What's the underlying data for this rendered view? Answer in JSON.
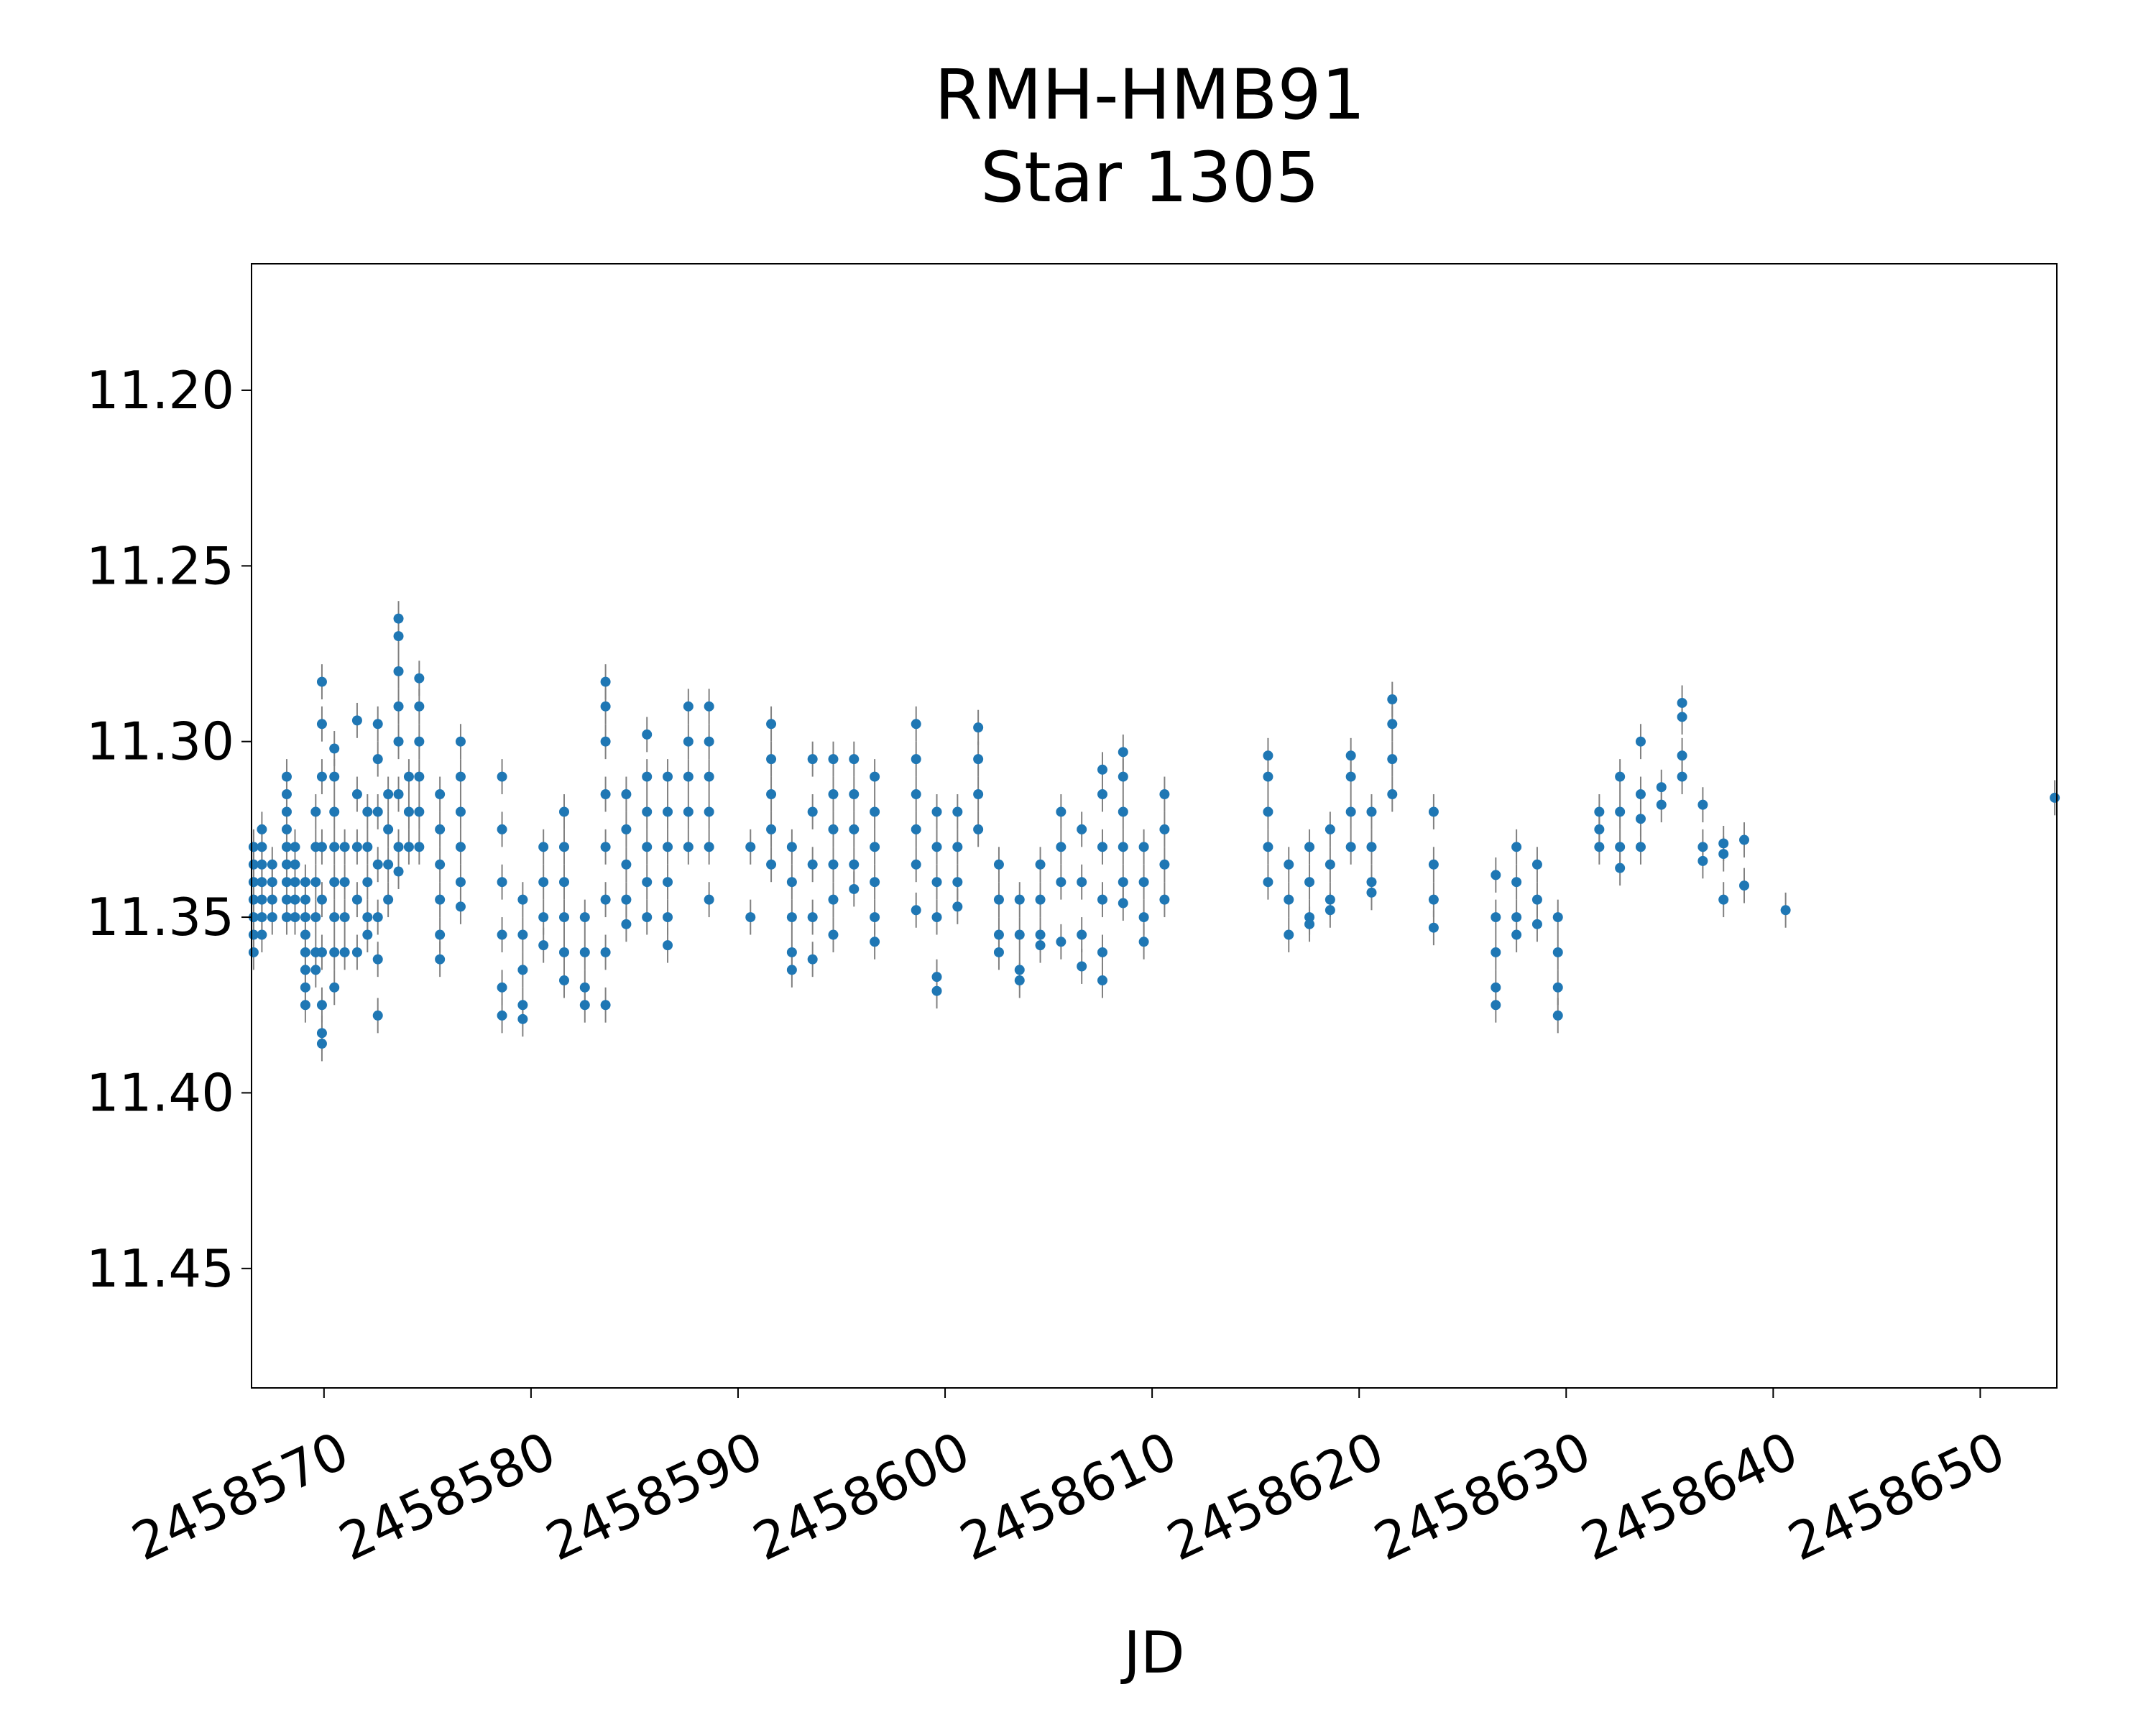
{
  "chart_data": {
    "type": "scatter",
    "title": [
      "RMH-HMB91",
      "Star 1305"
    ],
    "xlabel": "JD",
    "ylabel": "",
    "xlim": [
      2458566.5,
      2458653.7
    ],
    "ylim": [
      11.484,
      11.164
    ],
    "y_inverted": true,
    "grid": false,
    "x_ticks": [
      2458570,
      2458580,
      2458590,
      2458600,
      2458610,
      2458620,
      2458630,
      2458640,
      2458650
    ],
    "x_tick_labels": [
      "2458570",
      "2458580",
      "2458590",
      "2458600",
      "2458610",
      "2458620",
      "2458630",
      "2458640",
      "2458650"
    ],
    "y_ticks": [
      11.2,
      11.25,
      11.3,
      11.35,
      11.4,
      11.45
    ],
    "y_tick_labels": [
      "11.20",
      "11.25",
      "11.30",
      "11.35",
      "11.40",
      "11.45"
    ],
    "marker_color": "#1f77b4",
    "errorbar_color": "#808080",
    "typical_error": 0.005,
    "series": [
      {
        "segments": [
          {
            "x": 2458566.6,
            "y": [
              11.33,
              11.335,
              11.34,
              11.345,
              11.35,
              11.355,
              11.36
            ]
          },
          {
            "x": 2458567.0,
            "y": [
              11.325,
              11.33,
              11.335,
              11.34,
              11.345,
              11.35,
              11.355
            ]
          },
          {
            "x": 2458567.5,
            "y": [
              11.335,
              11.34,
              11.345,
              11.35
            ]
          },
          {
            "x": 2458568.2,
            "y": [
              11.31,
              11.315,
              11.32,
              11.325,
              11.33,
              11.335,
              11.34,
              11.345,
              11.35
            ]
          },
          {
            "x": 2458568.6,
            "y": [
              11.33,
              11.335,
              11.34,
              11.345,
              11.35
            ]
          },
          {
            "x": 2458569.1,
            "y": [
              11.34,
              11.345,
              11.35,
              11.355,
              11.36,
              11.365,
              11.37,
              11.375
            ]
          },
          {
            "x": 2458569.6,
            "y": [
              11.32,
              11.33,
              11.34,
              11.35,
              11.36,
              11.365
            ]
          },
          {
            "x": 2458569.9,
            "y": [
              11.283,
              11.295,
              11.31,
              11.33,
              11.345,
              11.36,
              11.375,
              11.383,
              11.386
            ]
          },
          {
            "x": 2458570.5,
            "y": [
              11.302,
              11.31,
              11.32,
              11.33,
              11.34,
              11.35,
              11.36,
              11.37
            ]
          },
          {
            "x": 2458571.0,
            "y": [
              11.33,
              11.34,
              11.35,
              11.36
            ]
          },
          {
            "x": 2458571.6,
            "y": [
              11.294,
              11.315,
              11.33,
              11.345,
              11.36
            ]
          },
          {
            "x": 2458572.1,
            "y": [
              11.32,
              11.33,
              11.34,
              11.35,
              11.355
            ]
          },
          {
            "x": 2458572.6,
            "y": [
              11.295,
              11.305,
              11.32,
              11.335,
              11.35,
              11.362,
              11.378
            ]
          },
          {
            "x": 2458573.1,
            "y": [
              11.315,
              11.325,
              11.335,
              11.345
            ]
          },
          {
            "x": 2458573.6,
            "y": [
              11.265,
              11.27,
              11.28,
              11.29,
              11.3,
              11.315,
              11.33,
              11.337
            ]
          },
          {
            "x": 2458574.1,
            "y": [
              11.31,
              11.32,
              11.33
            ]
          },
          {
            "x": 2458574.6,
            "y": [
              11.282,
              11.29,
              11.3,
              11.31,
              11.32,
              11.33
            ]
          },
          {
            "x": 2458575.6,
            "y": [
              11.315,
              11.325,
              11.335,
              11.345,
              11.355,
              11.362
            ]
          },
          {
            "x": 2458576.6,
            "y": [
              11.3,
              11.31,
              11.32,
              11.33,
              11.34,
              11.347
            ]
          },
          {
            "x": 2458578.6,
            "y": [
              11.31,
              11.325,
              11.34,
              11.355,
              11.37,
              11.378
            ]
          },
          {
            "x": 2458579.6,
            "y": [
              11.345,
              11.355,
              11.365,
              11.375,
              11.379
            ]
          },
          {
            "x": 2458580.6,
            "y": [
              11.33,
              11.34,
              11.35,
              11.358
            ]
          },
          {
            "x": 2458581.6,
            "y": [
              11.32,
              11.33,
              11.34,
              11.35,
              11.36,
              11.368
            ]
          },
          {
            "x": 2458582.6,
            "y": [
              11.35,
              11.36,
              11.37,
              11.375
            ]
          },
          {
            "x": 2458583.6,
            "y": [
              11.283,
              11.29,
              11.3,
              11.315,
              11.33,
              11.345,
              11.36,
              11.375
            ]
          },
          {
            "x": 2458584.6,
            "y": [
              11.315,
              11.325,
              11.335,
              11.345,
              11.352
            ]
          },
          {
            "x": 2458585.6,
            "y": [
              11.298,
              11.31,
              11.32,
              11.33,
              11.34,
              11.35
            ]
          },
          {
            "x": 2458586.6,
            "y": [
              11.31,
              11.32,
              11.33,
              11.34,
              11.35,
              11.358
            ]
          },
          {
            "x": 2458587.6,
            "y": [
              11.29,
              11.3,
              11.31,
              11.32,
              11.33
            ]
          },
          {
            "x": 2458588.6,
            "y": [
              11.29,
              11.3,
              11.31,
              11.32,
              11.33,
              11.345
            ]
          },
          {
            "x": 2458590.6,
            "y": [
              11.33,
              11.35
            ]
          },
          {
            "x": 2458591.6,
            "y": [
              11.295,
              11.305,
              11.315,
              11.325,
              11.335
            ]
          },
          {
            "x": 2458592.6,
            "y": [
              11.33,
              11.34,
              11.35,
              11.36,
              11.365
            ]
          },
          {
            "x": 2458593.6,
            "y": [
              11.305,
              11.32,
              11.335,
              11.35,
              11.362
            ]
          },
          {
            "x": 2458594.6,
            "y": [
              11.305,
              11.315,
              11.325,
              11.335,
              11.345,
              11.355
            ]
          },
          {
            "x": 2458595.6,
            "y": [
              11.305,
              11.315,
              11.325,
              11.335,
              11.342
            ]
          },
          {
            "x": 2458596.6,
            "y": [
              11.31,
              11.32,
              11.33,
              11.34,
              11.35,
              11.357
            ]
          },
          {
            "x": 2458598.6,
            "y": [
              11.295,
              11.305,
              11.315,
              11.325,
              11.335,
              11.348
            ]
          },
          {
            "x": 2458599.6,
            "y": [
              11.32,
              11.33,
              11.34,
              11.35,
              11.367,
              11.371
            ]
          },
          {
            "x": 2458600.6,
            "y": [
              11.32,
              11.33,
              11.34,
              11.347
            ]
          },
          {
            "x": 2458601.6,
            "y": [
              11.296,
              11.305,
              11.315,
              11.325
            ]
          },
          {
            "x": 2458602.6,
            "y": [
              11.335,
              11.345,
              11.355,
              11.36
            ]
          },
          {
            "x": 2458603.6,
            "y": [
              11.345,
              11.355,
              11.365,
              11.368
            ]
          },
          {
            "x": 2458604.6,
            "y": [
              11.335,
              11.345,
              11.355,
              11.358
            ]
          },
          {
            "x": 2458605.6,
            "y": [
              11.32,
              11.33,
              11.34,
              11.357
            ]
          },
          {
            "x": 2458606.6,
            "y": [
              11.325,
              11.34,
              11.355,
              11.364
            ]
          },
          {
            "x": 2458607.6,
            "y": [
              11.308,
              11.315,
              11.33,
              11.345,
              11.36,
              11.368
            ]
          },
          {
            "x": 2458608.6,
            "y": [
              11.303,
              11.31,
              11.32,
              11.33,
              11.34,
              11.346
            ]
          },
          {
            "x": 2458609.6,
            "y": [
              11.33,
              11.34,
              11.35,
              11.357
            ]
          },
          {
            "x": 2458610.6,
            "y": [
              11.315,
              11.325,
              11.335,
              11.345
            ]
          },
          {
            "x": 2458615.6,
            "y": [
              11.304,
              11.31,
              11.32,
              11.33,
              11.34
            ]
          },
          {
            "x": 2458616.6,
            "y": [
              11.335,
              11.345,
              11.355
            ]
          },
          {
            "x": 2458617.6,
            "y": [
              11.33,
              11.34,
              11.35,
              11.352
            ]
          },
          {
            "x": 2458618.6,
            "y": [
              11.325,
              11.335,
              11.345,
              11.348
            ]
          },
          {
            "x": 2458619.6,
            "y": [
              11.304,
              11.31,
              11.32,
              11.33
            ]
          },
          {
            "x": 2458620.6,
            "y": [
              11.32,
              11.33,
              11.34,
              11.343
            ]
          },
          {
            "x": 2458621.6,
            "y": [
              11.288,
              11.295,
              11.305,
              11.315
            ]
          },
          {
            "x": 2458623.6,
            "y": [
              11.32,
              11.335,
              11.345,
              11.353
            ]
          },
          {
            "x": 2458626.6,
            "y": [
              11.338,
              11.35,
              11.36,
              11.37,
              11.375
            ]
          },
          {
            "x": 2458627.6,
            "y": [
              11.33,
              11.34,
              11.35,
              11.355
            ]
          },
          {
            "x": 2458628.6,
            "y": [
              11.335,
              11.345,
              11.352
            ]
          },
          {
            "x": 2458629.6,
            "y": [
              11.35,
              11.36,
              11.37,
              11.378
            ]
          },
          {
            "x": 2458631.6,
            "y": [
              11.32,
              11.325,
              11.33
            ]
          },
          {
            "x": 2458632.6,
            "y": [
              11.31,
              11.32,
              11.33,
              11.336
            ]
          },
          {
            "x": 2458633.6,
            "y": [
              11.3,
              11.315,
              11.322,
              11.33
            ]
          },
          {
            "x": 2458634.6,
            "y": [
              11.313,
              11.318
            ]
          },
          {
            "x": 2458635.6,
            "y": [
              11.289,
              11.293,
              11.304,
              11.31
            ]
          },
          {
            "x": 2458636.6,
            "y": [
              11.318,
              11.33,
              11.334
            ]
          },
          {
            "x": 2458637.6,
            "y": [
              11.329,
              11.332,
              11.345
            ]
          },
          {
            "x": 2458638.6,
            "y": [
              11.328,
              11.341
            ]
          },
          {
            "x": 2458640.6,
            "y": [
              11.348
            ]
          },
          {
            "x": 2458653.6,
            "y": [
              11.316
            ]
          }
        ]
      }
    ]
  }
}
